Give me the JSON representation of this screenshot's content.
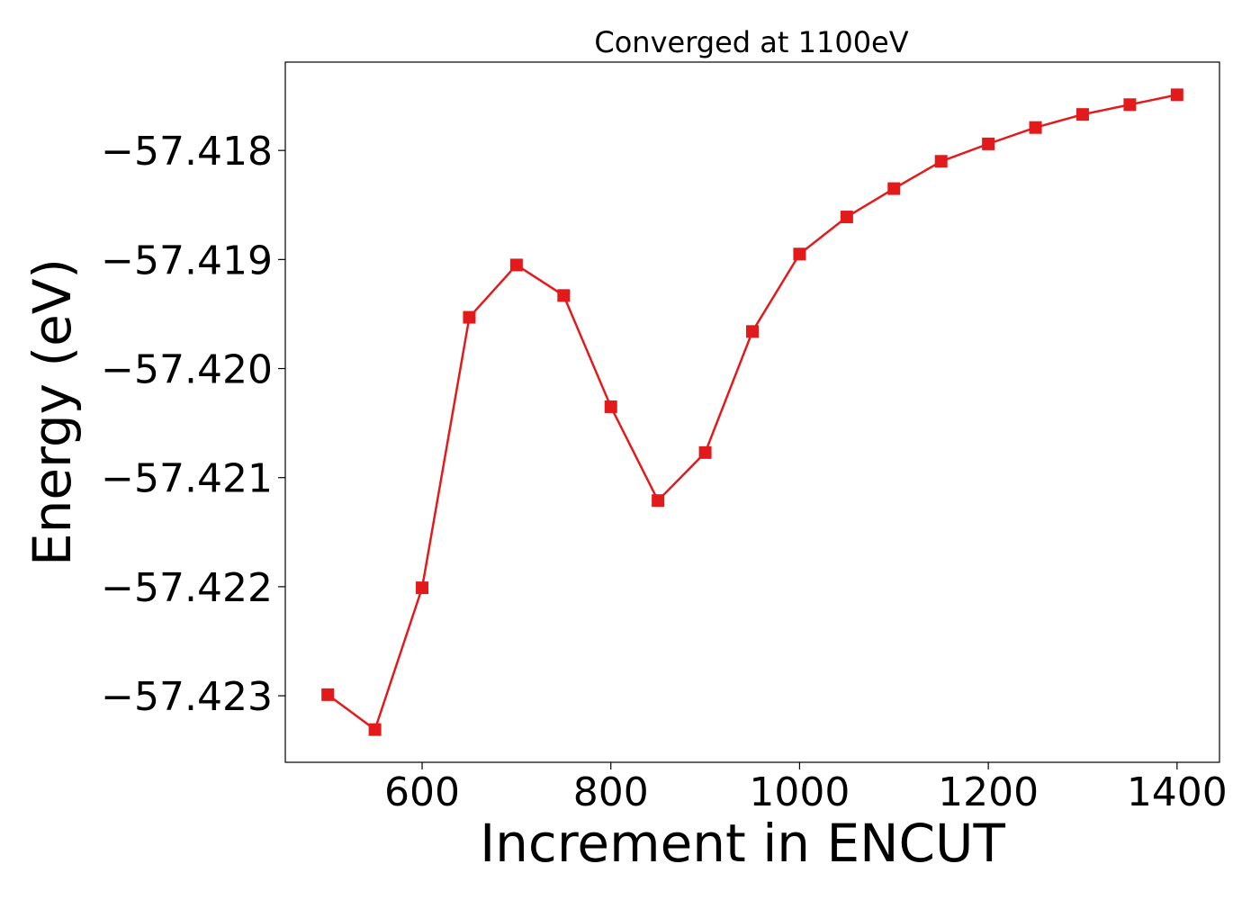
{
  "chart_data": {
    "type": "line",
    "title": "Converged at 1100eV",
    "xlabel": "Increment in ENCUT",
    "ylabel": "Energy (eV)",
    "x": [
      500,
      550,
      600,
      650,
      700,
      750,
      800,
      850,
      900,
      950,
      1000,
      1050,
      1100,
      1150,
      1200,
      1250,
      1300,
      1350,
      1400
    ],
    "series": [
      {
        "values": [
          -57.42299,
          -57.42331,
          -57.42201,
          -57.41953,
          -57.41905,
          -57.41933,
          -57.42035,
          -57.42121,
          -57.42077,
          -57.41966,
          -57.41895,
          -57.41861,
          -57.41835,
          -57.4181,
          -57.41794,
          -57.41779,
          -57.41767,
          -57.41758,
          -57.41749
        ],
        "color": "#e31a1c",
        "marker": "square"
      }
    ],
    "xlim": [
      455,
      1445
    ],
    "ylim": [
      -57.42361,
      -57.41719
    ],
    "xticks": [
      600,
      800,
      1000,
      1200,
      1400
    ],
    "xtick_labels": [
      "600",
      "800",
      "1000",
      "1200",
      "1400"
    ],
    "yticks": [
      -57.423,
      -57.422,
      -57.421,
      -57.42,
      -57.419,
      -57.418
    ],
    "ytick_labels": [
      "−57.423",
      "−57.422",
      "−57.421",
      "−57.420",
      "−57.419",
      "−57.418"
    ],
    "grid": false,
    "legend": "none"
  }
}
